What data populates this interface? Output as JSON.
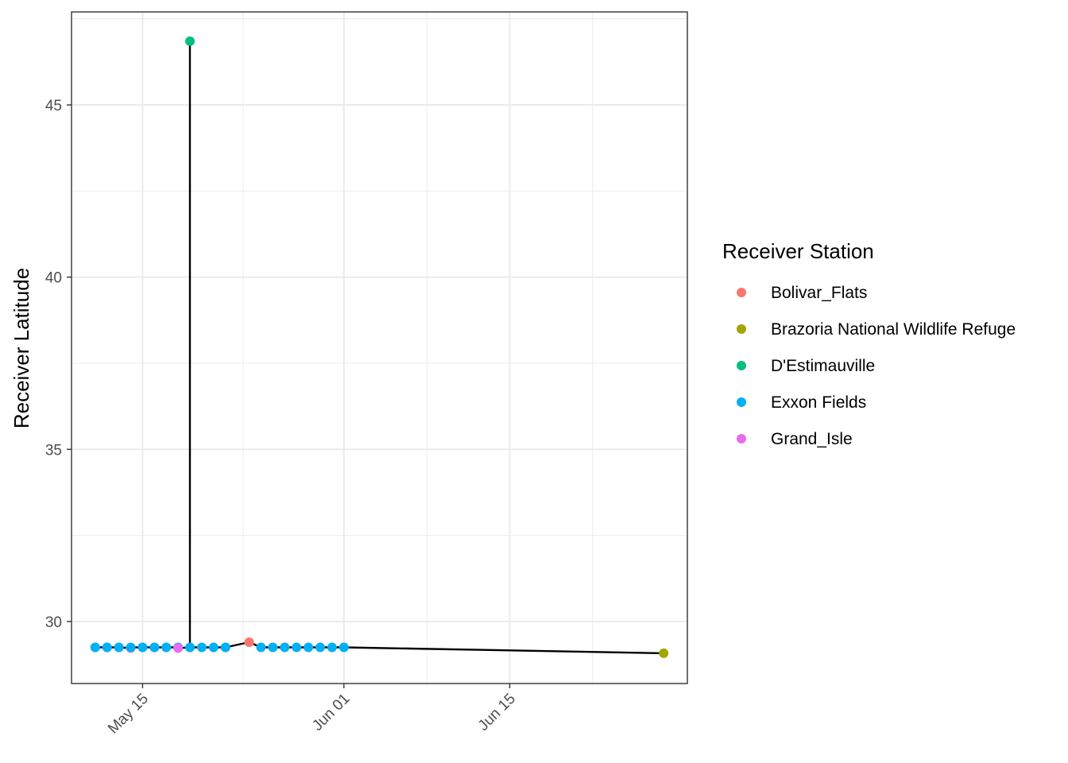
{
  "chart_data": {
    "type": "line",
    "xlabel": "",
    "ylabel": "Receiver Latitude",
    "x_ticks": [
      "May 15",
      "Jun 01",
      "Jun 15"
    ],
    "x_tick_dates": [
      "2019-05-15",
      "2019-06-01",
      "2019-06-15"
    ],
    "xlim": [
      "2019-05-09",
      "2019-06-30"
    ],
    "y_ticks": [
      30,
      35,
      40,
      45
    ],
    "ylim": [
      28.2,
      47.7
    ],
    "grid": true,
    "legend": {
      "title": "Receiver Station",
      "placement": "right",
      "entries": [
        {
          "name": "Bolivar_Flats",
          "color": "#F8766D"
        },
        {
          "name": "Brazoria National Wildlife Refuge",
          "color": "#A3A500"
        },
        {
          "name": "D'Estimauville",
          "color": "#00BF7D"
        },
        {
          "name": "Exxon Fields",
          "color": "#00B0F6"
        },
        {
          "name": "Grand_Isle",
          "color": "#E76BF3"
        }
      ]
    },
    "path_color": "#000000",
    "points": [
      {
        "x": "2019-05-11",
        "y": 29.25,
        "station": "Exxon Fields"
      },
      {
        "x": "2019-05-11",
        "y": 29.25,
        "station": "Exxon Fields"
      },
      {
        "x": "2019-05-12",
        "y": 29.25,
        "station": "Exxon Fields"
      },
      {
        "x": "2019-05-12",
        "y": 29.25,
        "station": "Exxon Fields"
      },
      {
        "x": "2019-05-13",
        "y": 29.25,
        "station": "Exxon Fields"
      },
      {
        "x": "2019-05-13",
        "y": 29.25,
        "station": "Exxon Fields"
      },
      {
        "x": "2019-05-14",
        "y": 29.23,
        "station": "Grand_Isle"
      },
      {
        "x": "2019-05-14",
        "y": 29.25,
        "station": "Exxon Fields"
      },
      {
        "x": "2019-05-15",
        "y": 29.25,
        "station": "Exxon Fields"
      },
      {
        "x": "2019-05-15",
        "y": 29.25,
        "station": "Exxon Fields"
      },
      {
        "x": "2019-05-16",
        "y": 29.25,
        "station": "Exxon Fields"
      },
      {
        "x": "2019-05-16",
        "y": 29.25,
        "station": "Exxon Fields"
      },
      {
        "x": "2019-05-17",
        "y": 29.25,
        "station": "Exxon Fields"
      },
      {
        "x": "2019-05-17",
        "y": 29.25,
        "station": "Exxon Fields"
      },
      {
        "x": "2019-05-18",
        "y": 29.25,
        "station": "Exxon Fields"
      },
      {
        "x": "2019-05-18",
        "y": 29.23,
        "station": "Grand_Isle"
      },
      {
        "x": "2019-05-19",
        "y": 29.25,
        "station": "Exxon Fields"
      },
      {
        "x": "2019-05-19",
        "y": 46.85,
        "station": "D'Estimauville"
      },
      {
        "x": "2019-05-19",
        "y": 29.25,
        "station": "Exxon Fields"
      },
      {
        "x": "2019-05-20",
        "y": 29.25,
        "station": "Exxon Fields"
      },
      {
        "x": "2019-05-21",
        "y": 29.25,
        "station": "Exxon Fields"
      },
      {
        "x": "2019-05-22",
        "y": 29.25,
        "station": "Exxon Fields"
      },
      {
        "x": "2019-05-22",
        "y": 29.25,
        "station": "Exxon Fields"
      },
      {
        "x": "2019-05-24",
        "y": 29.4,
        "station": "Bolivar_Flats"
      },
      {
        "x": "2019-05-25",
        "y": 29.25,
        "station": "Exxon Fields"
      },
      {
        "x": "2019-05-26",
        "y": 29.25,
        "station": "Exxon Fields"
      },
      {
        "x": "2019-05-27",
        "y": 29.25,
        "station": "Exxon Fields"
      },
      {
        "x": "2019-05-28",
        "y": 29.25,
        "station": "Exxon Fields"
      },
      {
        "x": "2019-05-29",
        "y": 29.25,
        "station": "Exxon Fields"
      },
      {
        "x": "2019-05-30",
        "y": 29.25,
        "station": "Exxon Fields"
      },
      {
        "x": "2019-05-31",
        "y": 29.25,
        "station": "Exxon Fields"
      },
      {
        "x": "2019-06-01",
        "y": 29.25,
        "station": "Exxon Fields"
      },
      {
        "x": "2019-06-28",
        "y": 29.08,
        "station": "Brazoria National Wildlife Refuge"
      }
    ]
  }
}
